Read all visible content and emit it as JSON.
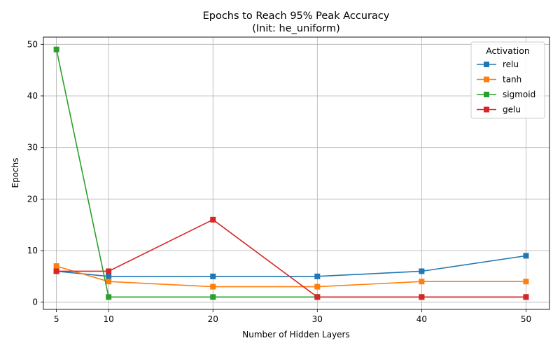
{
  "chart_data": {
    "type": "line",
    "title": "Epochs to Reach 95% Peak Accuracy",
    "subtitle": "(Init: he_uniform)",
    "xlabel": "Number of Hidden Layers",
    "ylabel": "Epochs",
    "x": [
      5,
      10,
      20,
      30,
      40,
      50
    ],
    "xticks": [
      5,
      10,
      20,
      30,
      40,
      50
    ],
    "yticks": [
      0,
      10,
      20,
      30,
      40,
      50
    ],
    "xlim": [
      3.75,
      52.25
    ],
    "ylim": [
      -1.4,
      51.4
    ],
    "grid": true,
    "marker": "square",
    "legend": {
      "title": "Activation",
      "placement": "top-right"
    },
    "series": [
      {
        "name": "relu",
        "color": "#1f77b4",
        "values": [
          6,
          5,
          5,
          5,
          6,
          9
        ]
      },
      {
        "name": "tanh",
        "color": "#ff7f0e",
        "values": [
          7,
          4,
          3,
          3,
          4,
          4
        ]
      },
      {
        "name": "sigmoid",
        "color": "#2ca02c",
        "values": [
          49,
          1,
          1,
          1,
          1,
          1
        ]
      },
      {
        "name": "gelu",
        "color": "#d62728",
        "values": [
          6,
          6,
          16,
          1,
          1,
          1
        ]
      }
    ]
  }
}
